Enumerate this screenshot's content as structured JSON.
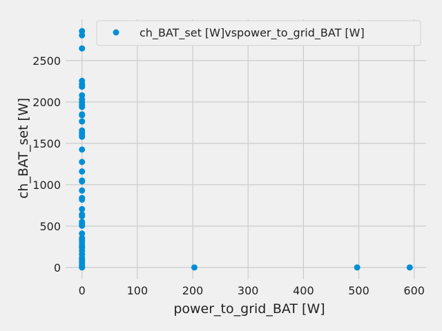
{
  "chart_data": {
    "type": "scatter",
    "title": "",
    "xlabel": "power_to_grid_BAT [W]",
    "ylabel": "ch_BAT_set [W]",
    "xlim": [
      -29.6,
      621.6
    ],
    "ylim": [
      -142.8,
      2999
    ],
    "xticks": [
      0,
      100,
      200,
      300,
      400,
      500,
      600
    ],
    "yticks": [
      0,
      500,
      1000,
      1500,
      2000,
      2500
    ],
    "grid": true,
    "legend_position": "top-right",
    "series": [
      {
        "name": "ch_BAT_set [W]vspower_to_grid_BAT [W]",
        "color": "#008fd5",
        "points": [
          [
            0,
            2856
          ],
          [
            0,
            2806
          ],
          [
            0,
            2647
          ],
          [
            0,
            2255
          ],
          [
            0,
            2215
          ],
          [
            0,
            2185
          ],
          [
            0,
            2080
          ],
          [
            0,
            2030
          ],
          [
            0,
            1995
          ],
          [
            0,
            1960
          ],
          [
            0,
            1940
          ],
          [
            0,
            1850
          ],
          [
            0,
            1840
          ],
          [
            0,
            1765
          ],
          [
            0,
            1655
          ],
          [
            0,
            1630
          ],
          [
            0,
            1600
          ],
          [
            0,
            1580
          ],
          [
            0,
            1425
          ],
          [
            0,
            1275
          ],
          [
            0,
            1160
          ],
          [
            0,
            1050
          ],
          [
            0,
            1040
          ],
          [
            0,
            930
          ],
          [
            0,
            840
          ],
          [
            0,
            820
          ],
          [
            0,
            705
          ],
          [
            0,
            640
          ],
          [
            0,
            620
          ],
          [
            0,
            550
          ],
          [
            0,
            525
          ],
          [
            0,
            505
          ],
          [
            0,
            410
          ],
          [
            0,
            355
          ],
          [
            0,
            330
          ],
          [
            0,
            300
          ],
          [
            0,
            265
          ],
          [
            0,
            240
          ],
          [
            0,
            200
          ],
          [
            0,
            160
          ],
          [
            0,
            120
          ],
          [
            0,
            90
          ],
          [
            0,
            60
          ],
          [
            0,
            30
          ],
          [
            0,
            10
          ],
          [
            0,
            0
          ],
          [
            203,
            0
          ],
          [
            497,
            0
          ],
          [
            592,
            0
          ]
        ]
      }
    ]
  }
}
